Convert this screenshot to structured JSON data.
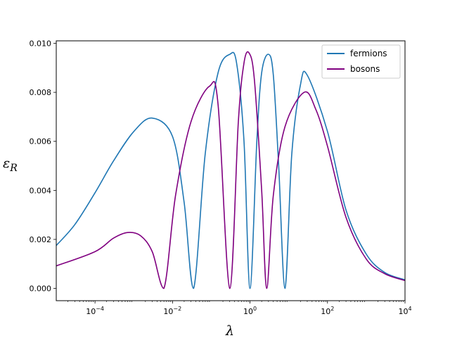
{
  "chart_data": {
    "type": "line",
    "x_scale": "log",
    "xlim": [
      1e-05,
      10000.0
    ],
    "ylim": [
      -0.0005,
      0.0101
    ],
    "x_ticks": [
      {
        "value": 0.0001,
        "base": "10",
        "exp": "−4"
      },
      {
        "value": 0.01,
        "base": "10",
        "exp": "−2"
      },
      {
        "value": 1,
        "base": "10",
        "exp": "0"
      },
      {
        "value": 100,
        "base": "10",
        "exp": "2"
      },
      {
        "value": 10000,
        "base": "10",
        "exp": "4"
      }
    ],
    "y_ticks": [
      {
        "value": 0.0,
        "label": "0.000"
      },
      {
        "value": 0.002,
        "label": "0.002"
      },
      {
        "value": 0.004,
        "label": "0.004"
      },
      {
        "value": 0.006,
        "label": "0.006"
      },
      {
        "value": 0.008,
        "label": "0.008"
      },
      {
        "value": 0.01,
        "label": "0.010"
      }
    ],
    "xlabel": "λ",
    "ylabel_main": "ε",
    "ylabel_sub": "R",
    "legend_position": "upper-right",
    "grid": false,
    "series": [
      {
        "name": "fermions",
        "color": "#1f77b4",
        "points": [
          [
            1e-05,
            0.00175
          ],
          [
            3e-05,
            0.0026
          ],
          [
            0.0001,
            0.0039
          ],
          [
            0.0003,
            0.0052
          ],
          [
            0.001,
            0.0064
          ],
          [
            0.003,
            0.00695
          ],
          [
            0.01,
            0.0062
          ],
          [
            0.02,
            0.0035
          ],
          [
            0.035,
            0.0
          ],
          [
            0.07,
            0.0055
          ],
          [
            0.15,
            0.0088
          ],
          [
            0.3,
            0.00955
          ],
          [
            0.45,
            0.0092
          ],
          [
            0.7,
            0.006
          ],
          [
            1.0,
            0.0
          ],
          [
            1.5,
            0.006
          ],
          [
            2.0,
            0.0088
          ],
          [
            3.0,
            0.00955
          ],
          [
            4.0,
            0.0087
          ],
          [
            5.5,
            0.005
          ],
          [
            8.0,
            0.0
          ],
          [
            12,
            0.0055
          ],
          [
            20,
            0.0083
          ],
          [
            30,
            0.0087
          ],
          [
            100,
            0.0064
          ],
          [
            300,
            0.0032
          ],
          [
            1000,
            0.0014
          ],
          [
            3000,
            0.00065
          ],
          [
            10000,
            0.00035
          ]
        ]
      },
      {
        "name": "bosons",
        "color": "#800080",
        "points": [
          [
            1e-05,
            0.00092
          ],
          [
            0.0001,
            0.0015
          ],
          [
            0.0003,
            0.00205
          ],
          [
            0.0007,
            0.00228
          ],
          [
            0.0015,
            0.00215
          ],
          [
            0.003,
            0.0015
          ],
          [
            0.006,
            0.0
          ],
          [
            0.012,
            0.0038
          ],
          [
            0.03,
            0.0068
          ],
          [
            0.09,
            0.00825
          ],
          [
            0.15,
            0.0075
          ],
          [
            0.3,
            0.0
          ],
          [
            0.5,
            0.0068
          ],
          [
            0.7,
            0.0092
          ],
          [
            0.95,
            0.0096
          ],
          [
            1.3,
            0.0085
          ],
          [
            2.0,
            0.004
          ],
          [
            2.7,
            0.0
          ],
          [
            4.0,
            0.0038
          ],
          [
            8.0,
            0.0066
          ],
          [
            25,
            0.008
          ],
          [
            50,
            0.0073
          ],
          [
            100,
            0.0058
          ],
          [
            300,
            0.0029
          ],
          [
            1000,
            0.0012
          ],
          [
            3000,
            0.0006
          ],
          [
            10000,
            0.00032
          ]
        ]
      }
    ]
  }
}
